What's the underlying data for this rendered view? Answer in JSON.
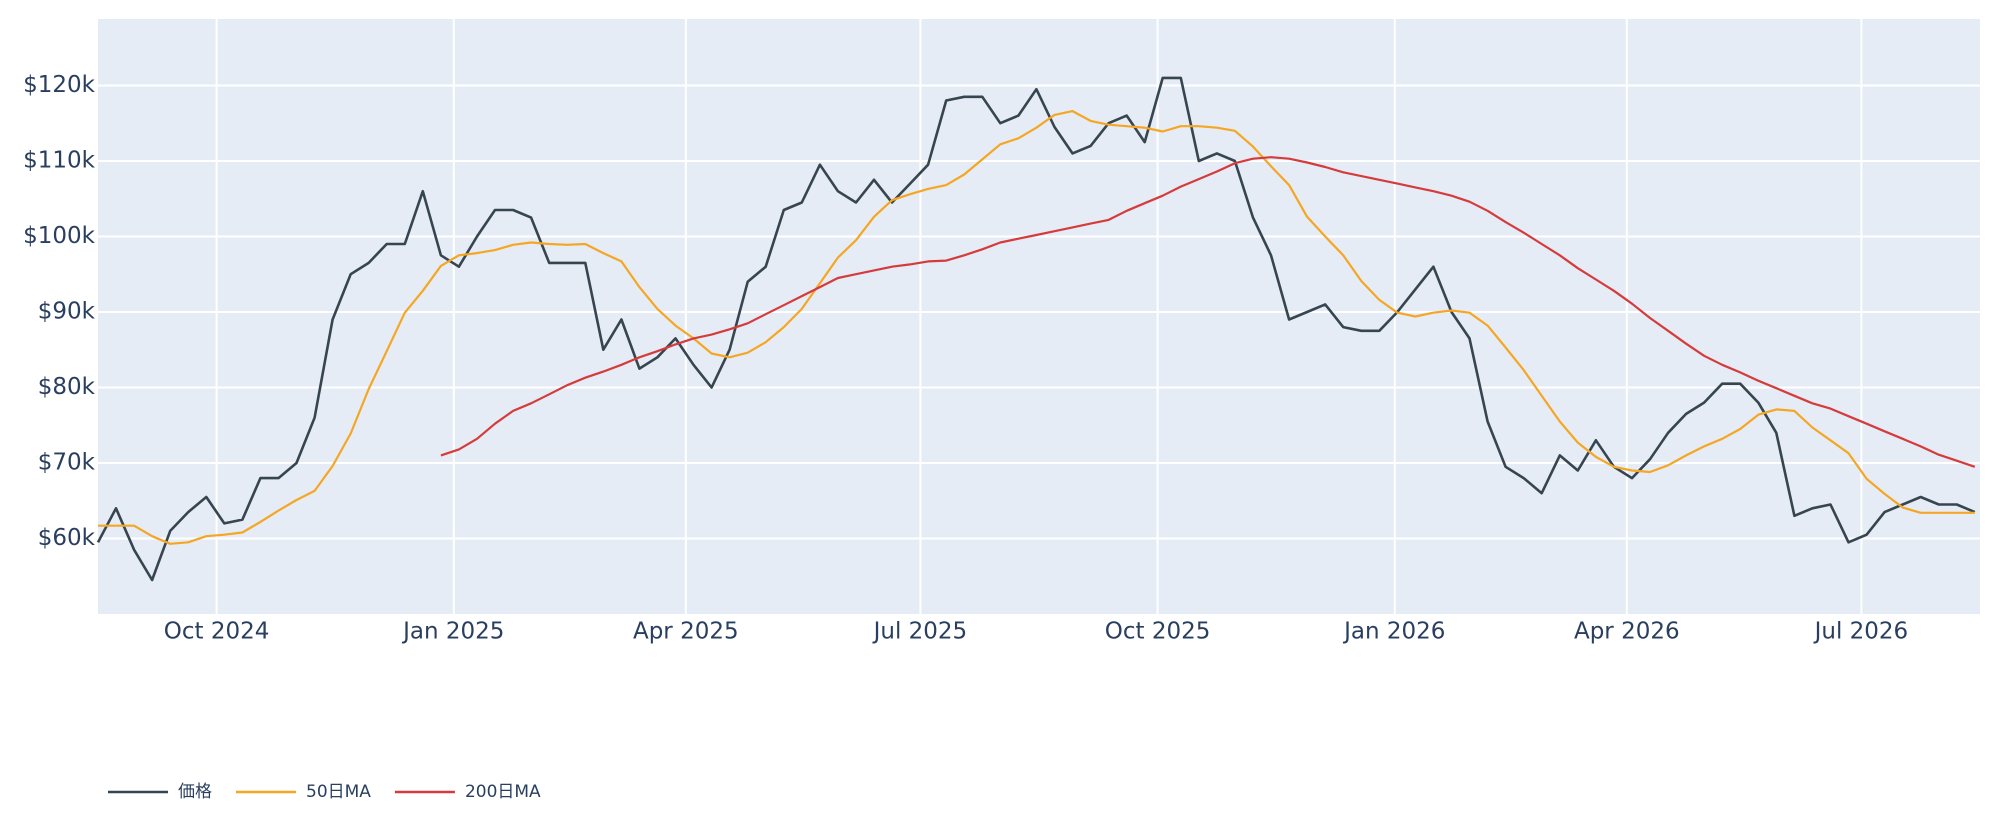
{
  "chart_data": {
    "type": "line",
    "x": [
      "2024-08-16",
      "2024-08-23",
      "2024-08-30",
      "2024-09-06",
      "2024-09-13",
      "2024-09-20",
      "2024-09-27",
      "2024-10-04",
      "2024-10-11",
      "2024-10-18",
      "2024-10-25",
      "2024-11-01",
      "2024-11-08",
      "2024-11-15",
      "2024-11-22",
      "2024-11-29",
      "2024-12-06",
      "2024-12-13",
      "2024-12-20",
      "2024-12-27",
      "2025-01-03",
      "2025-01-10",
      "2025-01-17",
      "2025-01-24",
      "2025-01-31",
      "2025-02-07",
      "2025-02-14",
      "2025-02-21",
      "2025-02-28",
      "2025-03-07",
      "2025-03-14",
      "2025-03-21",
      "2025-03-28",
      "2025-04-04",
      "2025-04-11",
      "2025-04-18",
      "2025-04-25",
      "2025-05-02",
      "2025-05-09",
      "2025-05-16",
      "2025-05-23",
      "2025-05-30",
      "2025-06-06",
      "2025-06-13",
      "2025-06-20",
      "2025-06-27",
      "2025-07-04",
      "2025-07-11",
      "2025-07-18",
      "2025-07-25",
      "2025-08-01",
      "2025-08-08",
      "2025-08-15",
      "2025-08-22",
      "2025-08-29",
      "2025-09-05",
      "2025-09-12",
      "2025-09-19",
      "2025-09-26",
      "2025-10-03",
      "2025-10-10",
      "2025-10-17",
      "2025-10-24",
      "2025-10-31",
      "2025-11-07",
      "2025-11-14",
      "2025-11-21",
      "2025-11-28",
      "2025-12-05",
      "2025-12-12",
      "2025-12-19",
      "2025-12-26",
      "2026-01-02",
      "2026-01-09",
      "2026-01-16",
      "2026-01-23",
      "2026-01-30",
      "2026-02-06",
      "2026-02-13",
      "2026-02-20",
      "2026-02-27",
      "2026-03-06",
      "2026-03-13",
      "2026-03-20",
      "2026-03-27",
      "2026-04-03",
      "2026-04-10",
      "2026-04-17",
      "2026-04-24",
      "2026-05-01",
      "2026-05-08",
      "2026-05-15",
      "2026-05-22",
      "2026-05-29",
      "2026-06-05",
      "2026-06-12",
      "2026-06-19",
      "2026-06-26",
      "2026-07-03",
      "2026-07-10",
      "2026-07-17",
      "2026-07-24",
      "2026-07-31",
      "2026-08-07",
      "2026-08-14"
    ],
    "series": [
      {
        "name": "価格",
        "color": "#36454f",
        "values": [
          59500,
          64000,
          58500,
          54500,
          61000,
          63500,
          65500,
          62000,
          62500,
          68000,
          68000,
          70000,
          76000,
          89000,
          95000,
          96500,
          99000,
          99000,
          106000,
          97500,
          96000,
          100000,
          103500,
          103500,
          102500,
          96500,
          96500,
          96500,
          85000,
          89000,
          82500,
          84000,
          86500,
          83000,
          80000,
          85000,
          94000,
          96000,
          103500,
          104500,
          109500,
          106000,
          104500,
          107500,
          104500,
          107000,
          109500,
          118000,
          118500,
          118500,
          115000,
          116000,
          119500,
          114500,
          111000,
          112000,
          115000,
          116000,
          112500,
          121000,
          121000,
          110000,
          111000,
          110000,
          102500,
          97500,
          89000,
          90000,
          91000,
          88000,
          87500,
          87500,
          90000,
          93000,
          96000,
          90000,
          86500,
          75500,
          69500,
          68000,
          66000,
          71000,
          69000,
          73000,
          69500,
          68000,
          70500,
          74000,
          76500,
          78000,
          80500,
          80500,
          78000,
          74000,
          63000,
          64000,
          64500,
          59500,
          60500,
          63500,
          64500,
          65500,
          64500,
          64500,
          63500
        ]
      },
      {
        "name": "50日MA",
        "color": "#f5a623",
        "values": [
          61700,
          61700,
          61700,
          60300,
          59300,
          59500,
          60300,
          60500,
          60800,
          62200,
          63700,
          65100,
          66300,
          69600,
          73900,
          79800,
          84800,
          89900,
          92800,
          96100,
          97500,
          97800,
          98200,
          98900,
          99200,
          99000,
          98900,
          99000,
          97800,
          96700,
          93300,
          90400,
          88200,
          86500,
          84500,
          84000,
          84600,
          86000,
          88000,
          90400,
          93800,
          97200,
          99500,
          102600,
          104800,
          105600,
          106300,
          106800,
          108200,
          110200,
          112200,
          113000,
          114400,
          116100,
          116600,
          115300,
          114800,
          114600,
          114400,
          113900,
          114600,
          114600,
          114400,
          114000,
          111900,
          109300,
          106800,
          102600,
          100000,
          97500,
          94100,
          91600,
          89900,
          89400,
          89900,
          90200,
          89900,
          88200,
          85300,
          82300,
          78900,
          75500,
          72700,
          70800,
          69500,
          69000,
          68800,
          69700,
          71000,
          72200,
          73200,
          74500,
          76400,
          77100,
          76900,
          74700,
          73000,
          71300,
          67900,
          65900,
          64100,
          63400,
          63400,
          63400,
          63400
        ]
      },
      {
        "name": "200日MA",
        "color": "#d63b3b",
        "values": [
          null,
          null,
          null,
          null,
          null,
          null,
          null,
          null,
          null,
          null,
          null,
          null,
          null,
          null,
          null,
          null,
          null,
          null,
          null,
          71000,
          71800,
          73200,
          75200,
          76900,
          77900,
          79100,
          80300,
          81300,
          82100,
          83000,
          84000,
          84800,
          85700,
          86500,
          87000,
          87700,
          88500,
          89700,
          90900,
          92100,
          93300,
          94500,
          95000,
          95500,
          96000,
          96300,
          96700,
          96800,
          97500,
          98300,
          99200,
          99700,
          100200,
          100700,
          101200,
          101700,
          102200,
          103400,
          104400,
          105400,
          106600,
          107600,
          108600,
          109700,
          110300,
          110500,
          110300,
          109800,
          109200,
          108500,
          108000,
          107500,
          107000,
          106500,
          106000,
          105400,
          104600,
          103400,
          101900,
          100500,
          99000,
          97500,
          95800,
          94300,
          92800,
          91100,
          89200,
          87500,
          85800,
          84200,
          83000,
          82000,
          80900,
          79900,
          78900,
          77900,
          77200,
          76200,
          75200,
          74200,
          73200,
          72200,
          71100,
          70300,
          69500
        ]
      }
    ],
    "xlim": [
      "2024-08-16",
      "2026-08-16"
    ],
    "xticks": [
      {
        "value": "2024-10-01",
        "label": "Oct 2024"
      },
      {
        "value": "2025-01-01",
        "label": "Jan 2025"
      },
      {
        "value": "2025-04-01",
        "label": "Apr 2025"
      },
      {
        "value": "2025-07-01",
        "label": "Jul 2025"
      },
      {
        "value": "2025-10-01",
        "label": "Oct 2025"
      },
      {
        "value": "2026-01-01",
        "label": "Jan 2026"
      },
      {
        "value": "2026-04-01",
        "label": "Apr 2026"
      },
      {
        "value": "2026-07-01",
        "label": "Jul 2026"
      }
    ],
    "ylim": [
      50000,
      128800
    ],
    "yticks": [
      {
        "value": 60000,
        "label": "$60k"
      },
      {
        "value": 70000,
        "label": "$70k"
      },
      {
        "value": 80000,
        "label": "$80k"
      },
      {
        "value": 90000,
        "label": "$90k"
      },
      {
        "value": 100000,
        "label": "$100k"
      },
      {
        "value": 110000,
        "label": "$110k"
      },
      {
        "value": 120000,
        "label": "$120k"
      }
    ],
    "grid": true,
    "legend": "bottom-left"
  }
}
